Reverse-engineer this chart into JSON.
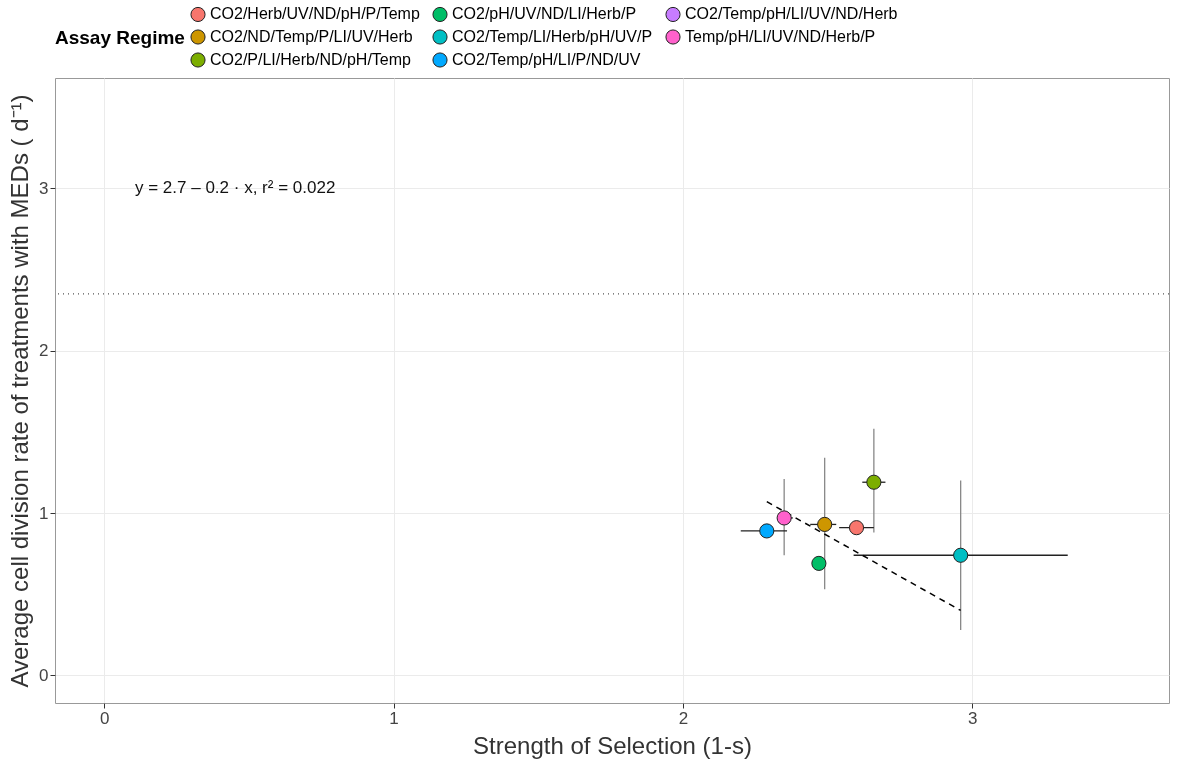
{
  "chart_data": {
    "type": "scatter",
    "xlabel": "Strength of Selection (1-s)",
    "ylabel": "Average cell division rate of treatments with MEDs ( d⁻¹)",
    "legend_title": "Assay Regime",
    "legend": "top",
    "grid": true,
    "marker": "circle",
    "xlim": [
      -0.17,
      3.68
    ],
    "xticks": [
      0,
      1,
      2,
      3
    ],
    "ylim": [
      -0.17,
      3.68
    ],
    "yticks": [
      0,
      1,
      2,
      3
    ],
    "annotations": [
      "y = 2.7 – 0.2 · x,  r² = 0.022"
    ],
    "ref_lines": [
      {
        "axis": "y",
        "value": 2.35,
        "line_style": "dotted",
        "color": "#555555"
      }
    ],
    "series": [
      {
        "name": "CO2/Herb/UV/ND/pH/P/Temp",
        "color": "#f8766d",
        "x": [
          2.6
        ],
        "values": [
          0.91
        ],
        "xerrors": [
          [
            2.54,
            2.66
          ]
        ],
        "errors": [
          null
        ]
      },
      {
        "name": "CO2/ND/Temp/P/LI/UV/Herb",
        "color": "#cd9600",
        "x": [
          2.49
        ],
        "values": [
          0.93
        ],
        "xerrors": [
          [
            2.44,
            2.53
          ]
        ],
        "errors": [
          [
            0.53,
            1.34
          ]
        ]
      },
      {
        "name": "CO2/P/LI/Herb/ND/pH/Temp",
        "color": "#7cae00",
        "x": [
          2.66
        ],
        "values": [
          1.19
        ],
        "xerrors": [
          [
            2.62,
            2.7
          ]
        ],
        "errors": [
          [
            0.88,
            1.52
          ]
        ]
      },
      {
        "name": "CO2/pH/UV/ND/LI/Herb/P",
        "color": "#00be67",
        "x": [
          2.47
        ],
        "values": [
          0.69
        ],
        "xerrors": [
          [
            2.45,
            2.49
          ]
        ],
        "errors": [
          null
        ]
      },
      {
        "name": "CO2/Temp/LI/Herb/pH/UV/P",
        "color": "#00bfc4",
        "x": [
          2.96
        ],
        "values": [
          0.74
        ],
        "xerrors": [
          [
            2.59,
            3.33
          ]
        ],
        "errors": [
          [
            0.28,
            1.2
          ]
        ]
      },
      {
        "name": "CO2/Temp/pH/LI/P/ND/UV",
        "color": "#00a9ff",
        "x": [
          2.29
        ],
        "values": [
          0.89
        ],
        "xerrors": [
          [
            2.2,
            2.36
          ]
        ],
        "errors": [
          null
        ]
      },
      {
        "name": "CO2/Temp/pH/LI/UV/ND/Herb",
        "color": "#c77cff"
      },
      {
        "name": "Temp/pH/LI/UV/ND/Herb/P",
        "color": "#ff61cc",
        "x": [
          2.35
        ],
        "values": [
          0.97
        ],
        "xerrors": [
          [
            2.33,
            2.38
          ]
        ],
        "errors": [
          [
            0.74,
            1.21
          ]
        ]
      },
      {
        "type": "line",
        "color": "#000000",
        "line_style": "dashed",
        "marker": "none",
        "x": [
          2.29,
          2.96
        ],
        "values": [
          1.07,
          0.4
        ]
      }
    ]
  }
}
